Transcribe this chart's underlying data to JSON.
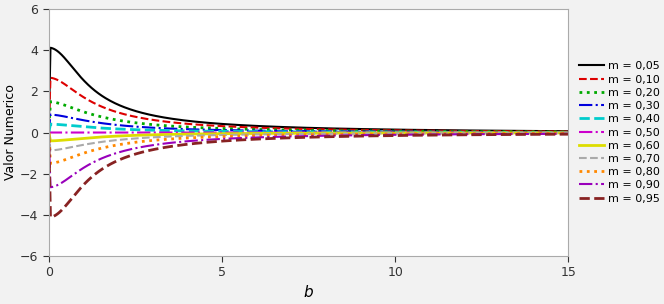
{
  "title": "",
  "xlabel": "b",
  "ylabel": "Valor Numerico",
  "xlim": [
    0,
    15
  ],
  "ylim": [
    -6,
    6
  ],
  "xticks": [
    0,
    5,
    10,
    15
  ],
  "yticks": [
    -6,
    -4,
    -2,
    0,
    2,
    4,
    6
  ],
  "background_color": "#f2f2f2",
  "plot_bg_color": "#ffffff",
  "series": [
    {
      "m": 0.05,
      "color": "#000000",
      "linestyle": "solid",
      "linewidth": 1.5
    },
    {
      "m": 0.1,
      "color": "#dd0000",
      "linestyle": "dashed",
      "linewidth": 1.5
    },
    {
      "m": 0.2,
      "color": "#00aa00",
      "linestyle": "dotted",
      "linewidth": 2.0
    },
    {
      "m": 0.3,
      "color": "#0000dd",
      "linestyle": "dashdot",
      "linewidth": 1.5
    },
    {
      "m": 0.4,
      "color": "#00cccc",
      "linestyle": "dashed",
      "linewidth": 2.0
    },
    {
      "m": 0.5,
      "color": "#cc00cc",
      "linestyle": "dashdot",
      "linewidth": 1.5
    },
    {
      "m": 0.6,
      "color": "#dddd00",
      "linestyle": "solid",
      "linewidth": 2.0
    },
    {
      "m": 0.7,
      "color": "#aaaaaa",
      "linestyle": "dashed",
      "linewidth": 1.5
    },
    {
      "m": 0.8,
      "color": "#ff8800",
      "linestyle": "dotted",
      "linewidth": 2.0
    },
    {
      "m": 0.9,
      "color": "#9900bb",
      "linestyle": "dashdot",
      "linewidth": 1.5
    },
    {
      "m": 0.95,
      "color": "#882222",
      "linestyle": "dashed",
      "linewidth": 2.0
    }
  ],
  "legend_labels": [
    "m = 0,05",
    "m = 0,10",
    "m = 0,20",
    "m = 0,30",
    "m = 0,40",
    "m = 0,50",
    "m = 0,60",
    "m = 0,70",
    "m = 0,80",
    "m = 0,90",
    "m = 0,95"
  ]
}
